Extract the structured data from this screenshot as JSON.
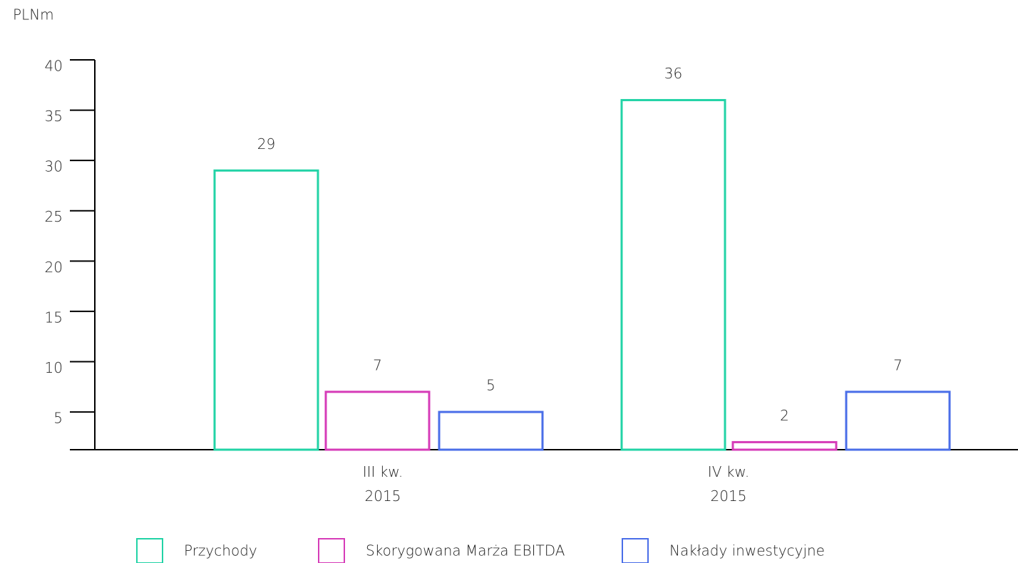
{
  "chart_data": {
    "type": "bar",
    "y_label": "PLNm",
    "categories": [
      "III kw. 2015",
      "IV kw. 2015"
    ],
    "series": [
      {
        "name": "Przychody",
        "color": "#22d3a6",
        "values": [
          29,
          36
        ]
      },
      {
        "name": "Skorygowana Marża EBITDA",
        "color": "#d63cb8",
        "values": [
          7,
          2
        ]
      },
      {
        "name": "Nakłady inwestycyjne",
        "color": "#4a6ee8",
        "values": [
          5,
          7
        ]
      }
    ],
    "ylim": [
      1.25,
      40
    ],
    "yticks": [
      5,
      10,
      15,
      20,
      25,
      30,
      35,
      40
    ],
    "legend": "bottom"
  }
}
